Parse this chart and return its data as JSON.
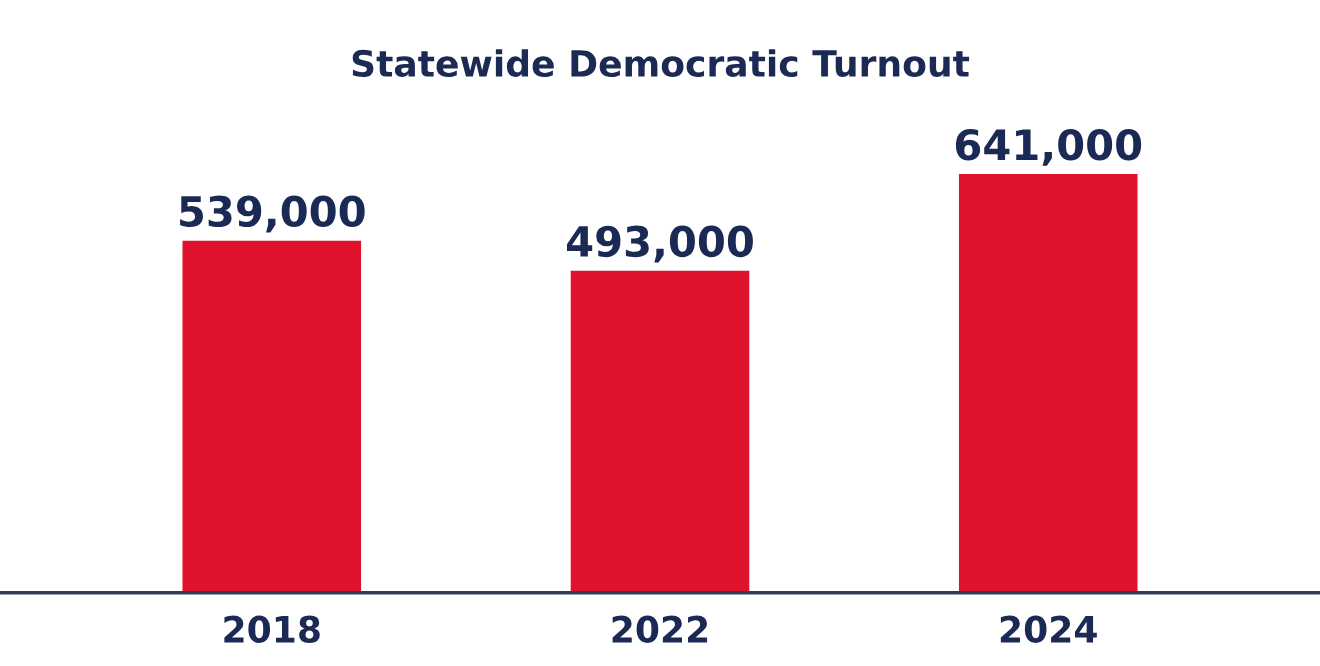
{
  "chart_data": {
    "type": "bar",
    "title": "Statewide Democratic Turnout",
    "categories": [
      "2018",
      "2022",
      "2024"
    ],
    "values": [
      539000,
      493000,
      641000
    ],
    "color": "#e0132f",
    "value_labels": [
      "539,000",
      "493,000",
      "641,000"
    ],
    "grid": false,
    "legend": false
  }
}
